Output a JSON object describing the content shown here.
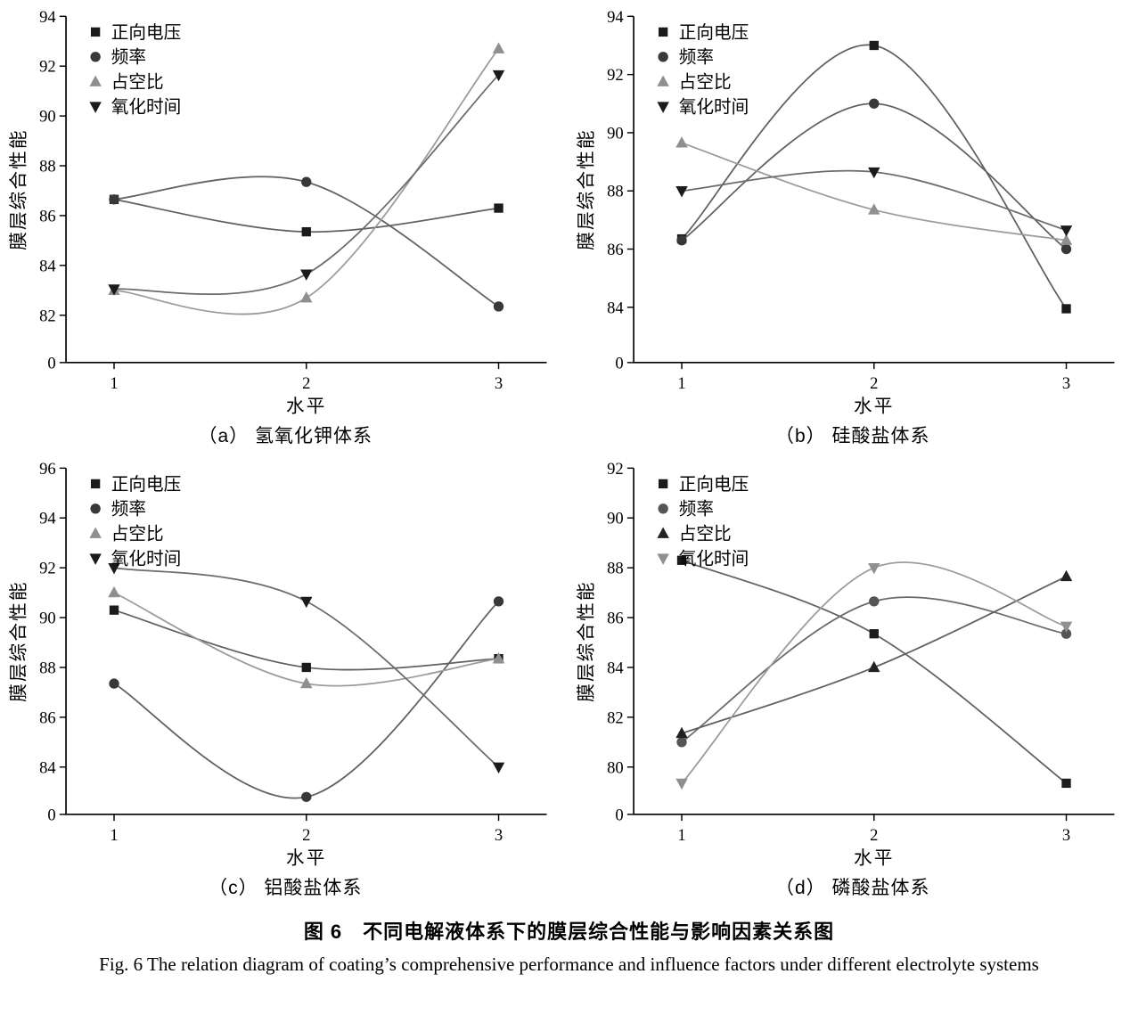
{
  "figure": {
    "caption_cn": "图 6　不同电解液体系下的膜层综合性能与影响因素关系图",
    "caption_en": "Fig. 6  The relation diagram of coating’s comprehensive performance and influence factors under different electrolyte systems"
  },
  "chart_data": [
    {
      "type": "line",
      "caption": "（a） 氢氧化钾体系",
      "xlabel": "水平",
      "ylabel": "膜层综合性能",
      "x": [
        1,
        2,
        3
      ],
      "yticks": [
        82,
        84,
        86,
        88,
        90,
        92,
        94
      ],
      "y_origin_label": "0",
      "legend_position": "top-left",
      "grid": false,
      "series": [
        {
          "name": "正向电压",
          "marker": "square",
          "color": "#1b1b1b",
          "line_color": "#606060",
          "values": [
            86.65,
            85.35,
            86.3
          ]
        },
        {
          "name": "频率",
          "marker": "circle",
          "color": "#383838",
          "line_color": "#606060",
          "values": [
            86.65,
            87.35,
            82.35
          ]
        },
        {
          "name": "占空比",
          "marker": "triangle-up",
          "color": "#8f8f8f",
          "line_color": "#9b9b9b",
          "values": [
            83.0,
            82.7,
            92.7
          ]
        },
        {
          "name": "氧化时间",
          "marker": "triangle-down",
          "color": "#1b1b1b",
          "line_color": "#6b6b6b",
          "values": [
            83.05,
            83.65,
            91.65
          ]
        }
      ]
    },
    {
      "type": "line",
      "caption": "（b） 硅酸盐体系",
      "xlabel": "水平",
      "ylabel": "膜层综合性能",
      "x": [
        1,
        2,
        3
      ],
      "yticks": [
        84,
        86,
        88,
        90,
        92,
        94
      ],
      "y_origin_label": "0",
      "legend_position": "top-left",
      "grid": false,
      "series": [
        {
          "name": "正向电压",
          "marker": "square",
          "color": "#1b1b1b",
          "line_color": "#606060",
          "values": [
            86.35,
            93.0,
            83.95
          ]
        },
        {
          "name": "频率",
          "marker": "circle",
          "color": "#383838",
          "line_color": "#606060",
          "values": [
            86.3,
            91.0,
            86.0
          ]
        },
        {
          "name": "占空比",
          "marker": "triangle-up",
          "color": "#8f8f8f",
          "line_color": "#9b9b9b",
          "values": [
            89.65,
            87.35,
            86.3
          ]
        },
        {
          "name": "氧化时间",
          "marker": "triangle-down",
          "color": "#1b1b1b",
          "line_color": "#6b6b6b",
          "values": [
            88.0,
            88.65,
            86.65
          ]
        }
      ]
    },
    {
      "type": "line",
      "caption": "（c） 铝酸盐体系",
      "xlabel": "水平",
      "ylabel": "膜层综合性能",
      "x": [
        1,
        2,
        3
      ],
      "yticks": [
        84,
        86,
        88,
        90,
        92,
        94,
        96
      ],
      "y_origin_label": "0",
      "legend_position": "top-left",
      "grid": false,
      "series": [
        {
          "name": "正向电压",
          "marker": "square",
          "color": "#1b1b1b",
          "line_color": "#606060",
          "values": [
            90.3,
            88.0,
            88.35
          ]
        },
        {
          "name": "频率",
          "marker": "circle",
          "color": "#383838",
          "line_color": "#606060",
          "values": [
            87.35,
            82.8,
            90.65
          ]
        },
        {
          "name": "占空比",
          "marker": "triangle-up",
          "color": "#8f8f8f",
          "line_color": "#9b9b9b",
          "values": [
            91.0,
            87.35,
            88.35
          ]
        },
        {
          "name": "氧化时间",
          "marker": "triangle-down",
          "color": "#1b1b1b",
          "line_color": "#6b6b6b",
          "values": [
            92.0,
            90.65,
            84.0
          ]
        }
      ]
    },
    {
      "type": "line",
      "caption": "（d） 磷酸盐体系",
      "xlabel": "水平",
      "ylabel": "膜层综合性能",
      "x": [
        1,
        2,
        3
      ],
      "yticks": [
        80,
        82,
        84,
        86,
        88,
        90,
        92
      ],
      "y_origin_label": "0",
      "legend_position": "top-left",
      "grid": false,
      "series": [
        {
          "name": "正向电压",
          "marker": "square",
          "color": "#1b1b1b",
          "line_color": "#606060",
          "values": [
            88.3,
            85.35,
            79.35
          ]
        },
        {
          "name": "频率",
          "marker": "circle",
          "color": "#555555",
          "line_color": "#6b6b6b",
          "values": [
            81.0,
            86.65,
            85.35
          ]
        },
        {
          "name": "占空比",
          "marker": "triangle-up",
          "color": "#222222",
          "line_color": "#606060",
          "values": [
            81.35,
            84.0,
            87.65
          ]
        },
        {
          "name": "氧化时间",
          "marker": "triangle-down",
          "color": "#8f8f8f",
          "line_color": "#9b9b9b",
          "values": [
            79.35,
            88.0,
            85.65
          ]
        }
      ]
    }
  ]
}
